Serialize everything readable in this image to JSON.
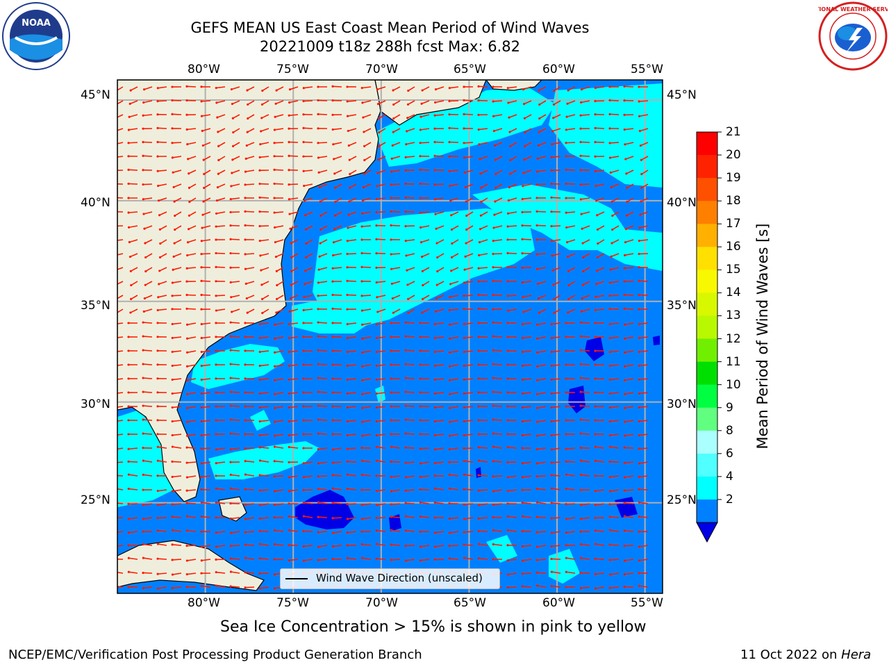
{
  "header": {
    "title_line1": "GEFS MEAN US East Coast Mean Period of Wind Waves",
    "title_line2": "20221009 t18z 288h fcst   Max: 6.82"
  },
  "logos": {
    "left": "NOAA",
    "right": "NATIONAL WEATHER SERVICE"
  },
  "map": {
    "lon_labels": [
      "80°W",
      "75°W",
      "70°W",
      "65°W",
      "60°W",
      "55°W"
    ],
    "lat_labels": [
      "45°N",
      "40°N",
      "35°N",
      "30°N",
      "25°N"
    ],
    "lon_range": [
      -85,
      -54
    ],
    "lat_range": [
      20.5,
      46
    ],
    "colors": {
      "land": "#efeedc",
      "field_low": "#0080ff",
      "field_mid": "#00ffff",
      "field_min": "#0000e6",
      "arrow": "#ff1a00"
    },
    "legend_label": "Wind Wave Direction (unscaled)"
  },
  "colorbar": {
    "label": "Mean Period of Wind Waves [s]",
    "ticks": [
      "21",
      "20",
      "19",
      "18",
      "17",
      "16",
      "15",
      "14",
      "13",
      "12",
      "11",
      "10",
      "9",
      "8",
      "6",
      "4",
      "2"
    ],
    "colors": [
      "#ff0000",
      "#ff2200",
      "#ff5000",
      "#ff8000",
      "#ffb000",
      "#ffe000",
      "#f8f800",
      "#d8f800",
      "#b8f800",
      "#70f000",
      "#00e000",
      "#00ff40",
      "#60ff80",
      "#aaffff",
      "#50ffff",
      "#00ffff",
      "#0080ff"
    ],
    "extend_color": "#0000e6"
  },
  "footer": {
    "ice_note": "Sea Ice Concentration > 15% is shown in pink to yellow",
    "branch": "NCEP/EMC/Verification Post Processing Product Generation Branch",
    "date": "11 Oct 2022 on ",
    "machine": "Hera"
  }
}
